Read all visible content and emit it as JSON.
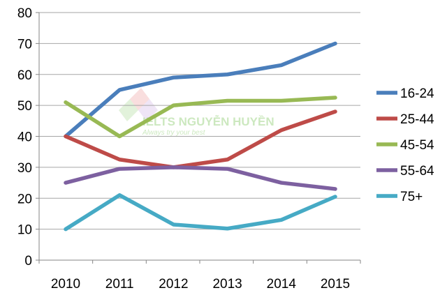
{
  "watermark": {
    "text": "IELTS NGUYỄN HUYỀN",
    "slogan": "Always try your best"
  },
  "chart_data": {
    "type": "line",
    "x": [
      "2010",
      "2011",
      "2012",
      "2013",
      "2014",
      "2015"
    ],
    "ylim": [
      0,
      80
    ],
    "yticks": [
      "0",
      "10",
      "20",
      "30",
      "40",
      "50",
      "60",
      "70",
      "80"
    ],
    "grid": true,
    "legend_position": "right",
    "series": [
      {
        "name": "16-24",
        "color": "#4a7ebb",
        "values": [
          40,
          55,
          59,
          60,
          63,
          70
        ]
      },
      {
        "name": "25-44",
        "color": "#be4b48",
        "values": [
          40,
          32.5,
          30,
          32.5,
          42,
          48
        ]
      },
      {
        "name": "45-54",
        "color": "#98b954",
        "values": [
          51,
          40,
          50,
          51.5,
          51.5,
          52.5
        ]
      },
      {
        "name": "55-64",
        "color": "#7d60a0",
        "values": [
          25,
          29.5,
          30,
          29.5,
          25,
          23
        ]
      },
      {
        "name": "75+",
        "color": "#46aac5",
        "values": [
          10,
          21,
          11.5,
          10.2,
          13,
          20.5
        ]
      }
    ]
  }
}
